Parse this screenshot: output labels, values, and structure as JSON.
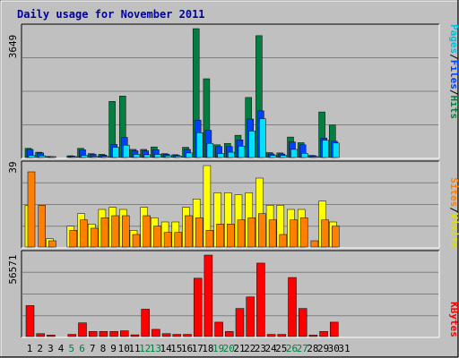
{
  "title": "Daily usage for November 2011",
  "colors": {
    "background": "#c0c0c0",
    "panel": "#c0c0c0",
    "title": "#0000a0",
    "hits": "#008040",
    "files": "#0040ff",
    "pages": "#00e0ff",
    "visits": "#ffff00",
    "sites": "#ff8000",
    "kbytes": "#ff0000",
    "weekend_label": "#008040",
    "gridline": "#808080"
  },
  "legend": {
    "top": {
      "pages": "Pages",
      "sep1": "/",
      "files": "Files",
      "sep2": "/",
      "hits": "Hits"
    },
    "middle": {
      "sites": "Sites",
      "sep": "/",
      "visits": "Visits"
    },
    "bottom": {
      "kbytes": "KBytes"
    }
  },
  "chart_data": [
    {
      "type": "bar",
      "panel": "hits-files-pages",
      "ymax_label": "3649",
      "ylim": [
        0,
        3649
      ],
      "categories": [
        "1",
        "2",
        "3",
        "4",
        "5",
        "6",
        "7",
        "8",
        "9",
        "10",
        "11",
        "12",
        "13",
        "14",
        "15",
        "16",
        "17",
        "18",
        "19",
        "20",
        "21",
        "22",
        "23",
        "24",
        "25",
        "26",
        "27",
        "28",
        "29",
        "30",
        "31"
      ],
      "series": [
        {
          "name": "Hits",
          "values": [
            260,
            150,
            30,
            0,
            50,
            260,
            110,
            90,
            1590,
            1740,
            230,
            230,
            300,
            110,
            80,
            290,
            3649,
            2230,
            360,
            400,
            630,
            1700,
            3450,
            140,
            130,
            580,
            420,
            60,
            1290,
            920,
            0
          ]
        },
        {
          "name": "Files",
          "values": [
            230,
            130,
            20,
            0,
            40,
            220,
            90,
            70,
            370,
            570,
            190,
            190,
            220,
            90,
            60,
            230,
            1060,
            770,
            310,
            310,
            500,
            1090,
            1320,
            100,
            100,
            440,
            360,
            50,
            550,
            460,
            0
          ]
        },
        {
          "name": "Pages",
          "values": [
            60,
            50,
            10,
            0,
            20,
            60,
            30,
            30,
            290,
            350,
            90,
            80,
            90,
            50,
            40,
            130,
            700,
            400,
            110,
            150,
            320,
            750,
            1100,
            60,
            60,
            230,
            120,
            10,
            490,
            410,
            0
          ]
        }
      ]
    },
    {
      "type": "bar",
      "panel": "visits-sites",
      "ymax_label": "39",
      "ylim": [
        0,
        39
      ],
      "categories": [
        "1",
        "2",
        "3",
        "4",
        "5",
        "6",
        "7",
        "8",
        "9",
        "10",
        "11",
        "12",
        "13",
        "14",
        "15",
        "16",
        "17",
        "18",
        "19",
        "20",
        "21",
        "22",
        "23",
        "24",
        "25",
        "26",
        "27",
        "28",
        "29",
        "30",
        "31"
      ],
      "series": [
        {
          "name": "Visits",
          "values": [
            20,
            0,
            4,
            0,
            10,
            16,
            11,
            18,
            19,
            18,
            8,
            19,
            14,
            12,
            12,
            19,
            23,
            39,
            26,
            26,
            25,
            26,
            33,
            20,
            20,
            18,
            18,
            0,
            22,
            12,
            0
          ]
        },
        {
          "name": "Sites",
          "values": [
            36,
            20,
            3,
            0,
            8,
            13,
            9,
            14,
            15,
            15,
            6,
            15,
            10,
            7,
            7,
            15,
            14,
            8,
            11,
            11,
            13,
            14,
            16,
            13,
            6,
            13,
            14,
            3,
            13,
            10,
            0
          ]
        }
      ]
    },
    {
      "type": "bar",
      "panel": "kbytes",
      "ymax_label": "56571",
      "ylim": [
        0,
        56571
      ],
      "categories": [
        "1",
        "2",
        "3",
        "4",
        "5",
        "6",
        "7",
        "8",
        "9",
        "10",
        "11",
        "12",
        "13",
        "14",
        "15",
        "16",
        "17",
        "18",
        "19",
        "20",
        "21",
        "22",
        "23",
        "24",
        "25",
        "26",
        "27",
        "28",
        "29",
        "30",
        "31"
      ],
      "series": [
        {
          "name": "KBytes",
          "values": [
            21500,
            2000,
            1000,
            0,
            1500,
            9500,
            3500,
            3500,
            3500,
            4000,
            1200,
            19000,
            5000,
            2000,
            1500,
            1500,
            40500,
            56571,
            10000,
            3500,
            19500,
            27500,
            51000,
            1500,
            1500,
            41000,
            19500,
            1000,
            3500,
            10000,
            0
          ]
        }
      ]
    }
  ],
  "weekend_days": [
    "5",
    "6",
    "12",
    "13",
    "19",
    "20",
    "26",
    "27"
  ]
}
